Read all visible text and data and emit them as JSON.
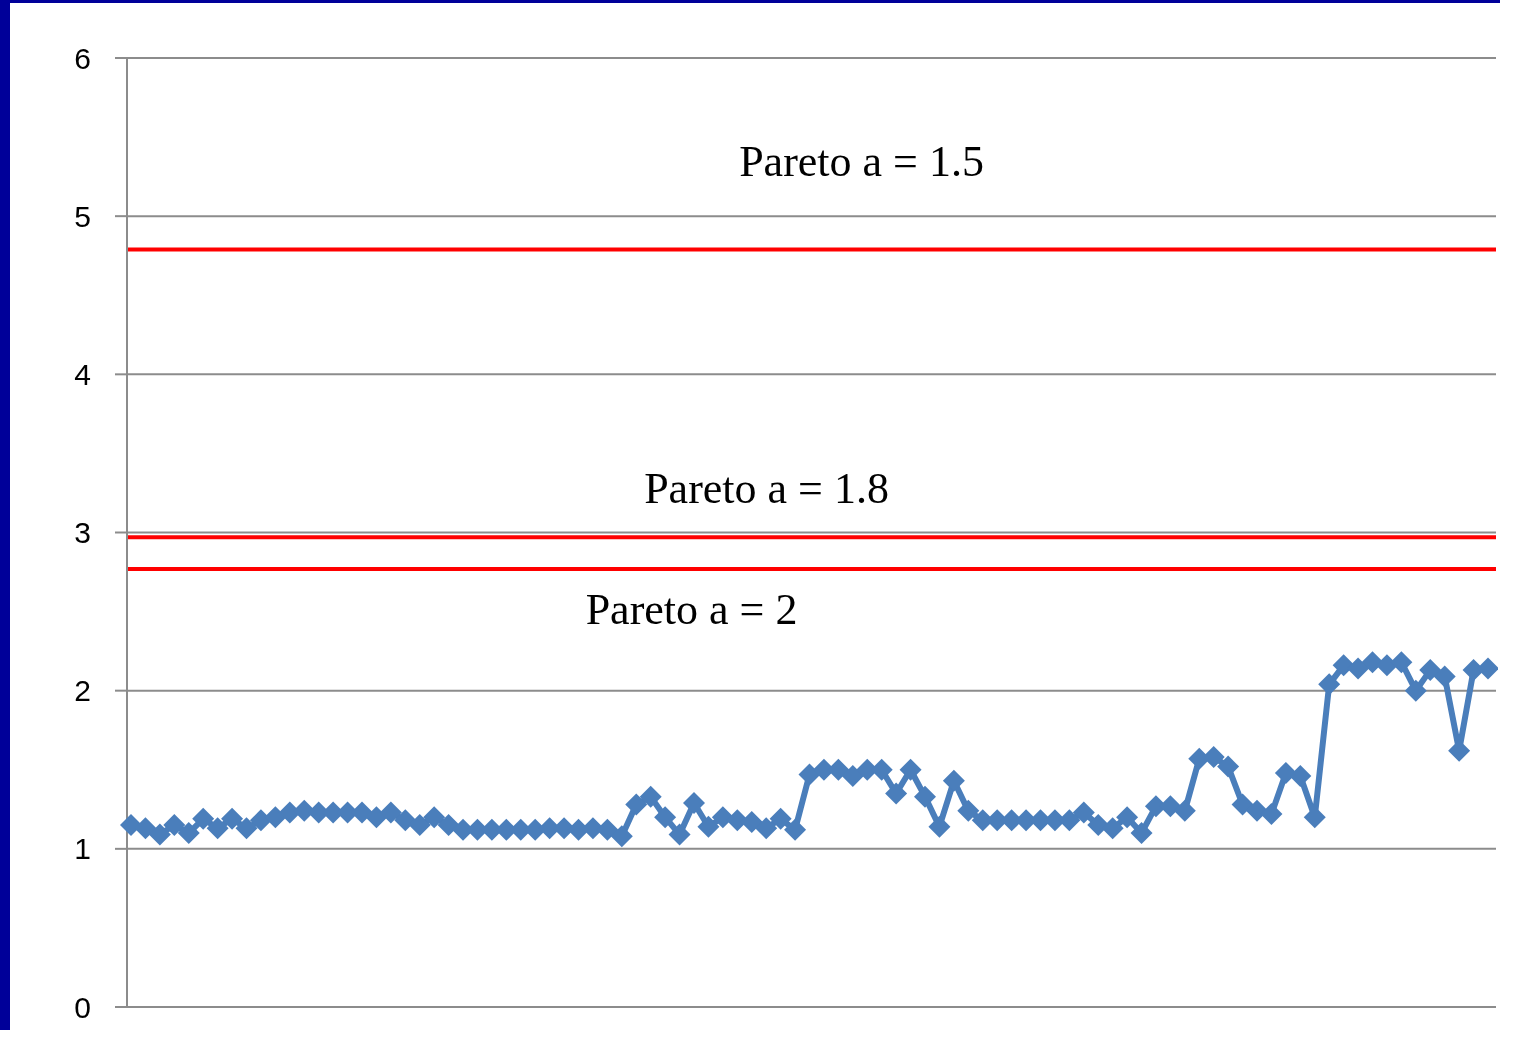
{
  "chart_data": {
    "type": "line",
    "categories": [
      null,
      null,
      null,
      null,
      null,
      null,
      null,
      null,
      null,
      null,
      null,
      null,
      null,
      null,
      null,
      null,
      null,
      null,
      null,
      null,
      null,
      null,
      null,
      null,
      null,
      null,
      null,
      null,
      null,
      null,
      null,
      null,
      null,
      null,
      null,
      null,
      null,
      null,
      null,
      null,
      null,
      null,
      null,
      null,
      null,
      null,
      null,
      null,
      null,
      null,
      null,
      null,
      null,
      null,
      null,
      null,
      null,
      null,
      null,
      null,
      null,
      null,
      null,
      null,
      null,
      null,
      null,
      null,
      null,
      null,
      null,
      null,
      null,
      null,
      null,
      null,
      null,
      null,
      null,
      null,
      null,
      null,
      null,
      null,
      null,
      null,
      null,
      null,
      null,
      null,
      null,
      null,
      null,
      null,
      null
    ],
    "series": [
      {
        "color": "#4a7ebb",
        "values": [
          1.15,
          1.13,
          1.09,
          1.15,
          1.1,
          1.19,
          1.13,
          1.19,
          1.13,
          1.18,
          1.2,
          1.23,
          1.24,
          1.23,
          1.23,
          1.23,
          1.23,
          1.2,
          1.23,
          1.18,
          1.15,
          1.2,
          1.15,
          1.12,
          1.12,
          1.12,
          1.12,
          1.12,
          1.12,
          1.13,
          1.13,
          1.12,
          1.13,
          1.12,
          1.08,
          1.28,
          1.33,
          1.2,
          1.09,
          1.29,
          1.14,
          1.2,
          1.18,
          1.17,
          1.13,
          1.19,
          1.12,
          1.47,
          1.5,
          1.5,
          1.46,
          1.5,
          1.5,
          1.35,
          1.5,
          1.33,
          1.14,
          1.43,
          1.24,
          1.18,
          1.18,
          1.18,
          1.18,
          1.18,
          1.18,
          1.18,
          1.23,
          1.15,
          1.13,
          1.2,
          1.1,
          1.27,
          1.27,
          1.24,
          1.57,
          1.58,
          1.52,
          1.28,
          1.24,
          1.22,
          1.48,
          1.46,
          1.2,
          2.04,
          2.16,
          2.14,
          2.18,
          2.16,
          2.18,
          2,
          2.13,
          2.09,
          1.62,
          2.13,
          2.14
        ]
      }
    ],
    "ylim": [
      0,
      6
    ],
    "yticks": [
      0,
      1,
      2,
      3,
      4,
      5,
      6
    ],
    "grid": "y",
    "tick_labels": "y",
    "marker": "diamond",
    "line_style": "solid",
    "ref_lines": [
      {
        "axis": "y",
        "value": 4.79,
        "color": "#ff0000"
      },
      {
        "axis": "y",
        "value": 2.97,
        "color": "#ff0000"
      },
      {
        "axis": "y",
        "value": 2.77,
        "color": "#ff0000"
      }
    ],
    "annotations": [
      {
        "text": "Pareto a = 1.5",
        "y": 4.79
      },
      {
        "text": "Pareto a = 1.8",
        "y": 2.97
      },
      {
        "text": "Pareto a = 2",
        "y": 2.77
      }
    ]
  }
}
